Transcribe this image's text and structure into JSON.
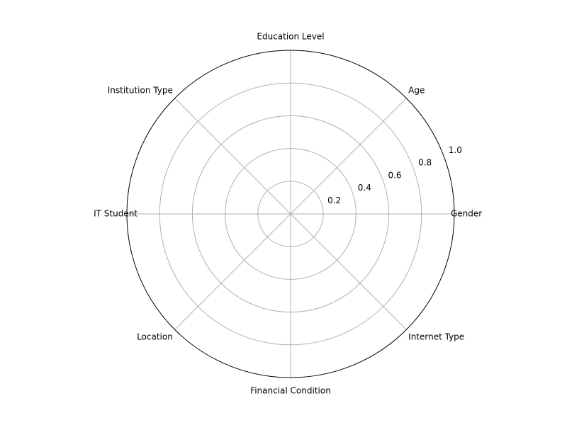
{
  "chart_data": {
    "type": "radar",
    "categories": [
      "Gender",
      "Age",
      "Education Level",
      "Institution Type",
      "IT Student",
      "Location",
      "Financial Condition",
      "Internet Type"
    ],
    "series": [],
    "rlim": [
      0,
      1.0
    ],
    "r_ticks": [
      {
        "value": 0.2,
        "label": "0.2"
      },
      {
        "value": 0.4,
        "label": "0.4"
      },
      {
        "value": 0.6,
        "label": "0.6"
      },
      {
        "value": 0.8,
        "label": "0.8"
      },
      {
        "value": 1.0,
        "label": "1.0"
      }
    ],
    "grid": true,
    "title": "",
    "colors": {
      "grid": "#b0b0b0",
      "frame": "#000000",
      "text": "#000000"
    }
  }
}
